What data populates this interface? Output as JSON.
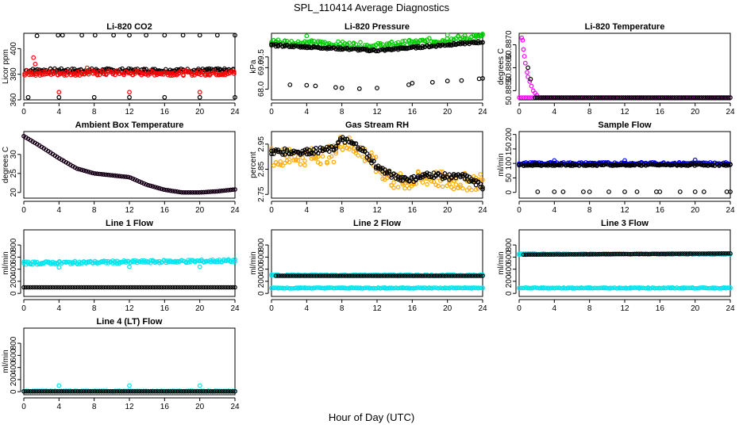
{
  "figure": {
    "title": "SPL_110414  Average Diagnostics",
    "xlabel": "Hour of Day (UTC)"
  },
  "chart_data": [
    {
      "type": "scatter",
      "title": "Li-820 CO2",
      "ylabel": "Licor ppm",
      "xlim": [
        0,
        24
      ],
      "ylim": [
        360,
        412
      ],
      "xticks": [
        0,
        4,
        8,
        12,
        16,
        20,
        24
      ],
      "yticks": [
        360,
        380,
        400
      ],
      "series": [
        {
          "color": "#000000",
          "band": {
            "x": [
              0.3,
              23.8
            ],
            "center": 383,
            "spread": 1.5
          },
          "points": [
            [
              1.5,
              410
            ],
            [
              3.9,
              410.5
            ],
            [
              4.4,
              410.5
            ],
            [
              6.6,
              410.5
            ],
            [
              8.1,
              410.5
            ],
            [
              10.2,
              410.5
            ],
            [
              12.0,
              410.5
            ],
            [
              13.9,
              410.5
            ],
            [
              16.0,
              410.5
            ],
            [
              18.1,
              410.5
            ],
            [
              20.0,
              410.5
            ],
            [
              22.0,
              410.5
            ],
            [
              24.0,
              410.5
            ],
            [
              0.5,
              362
            ],
            [
              4.0,
              362
            ],
            [
              8.0,
              362
            ],
            [
              12.0,
              362
            ],
            [
              16.0,
              362
            ],
            [
              20.0,
              362
            ],
            [
              24.0,
              362
            ]
          ]
        },
        {
          "color": "#ff0000",
          "band": {
            "x": [
              0.1,
              23.9
            ],
            "center": 381,
            "spread": 2
          },
          "points": [
            [
              1.1,
              393
            ],
            [
              1.3,
              388
            ],
            [
              4.0,
              366
            ],
            [
              7.2,
              385
            ],
            [
              12.0,
              366
            ],
            [
              20.0,
              366
            ]
          ]
        }
      ]
    },
    {
      "type": "scatter",
      "title": "Li-820 Pressure",
      "ylabel": "kPa",
      "xlim": [
        0,
        24
      ],
      "ylim": [
        67.5,
        70.6
      ],
      "xticks": [
        0,
        4,
        8,
        12,
        16,
        20,
        24
      ],
      "yticks": [
        68.0,
        69.0,
        69.5
      ],
      "ytick_labels": [
        "68.0",
        "69.0",
        "69.5"
      ],
      "series": [
        {
          "color": "#00cc00",
          "band": {
            "x": [
              0.0,
              24.0
            ],
            "trend": [
              [
                0,
                70.2
              ],
              [
                12,
                70.0
              ],
              [
                24,
                70.45
              ]
            ],
            "spread": 0.15
          },
          "points": [
            [
              4.0,
              70.48
            ],
            [
              20.0,
              70.52
            ]
          ]
        },
        {
          "color": "#000000",
          "band": {
            "x": [
              0.0,
              24.0
            ],
            "trend": [
              [
                0,
                70.05
              ],
              [
                12,
                69.8
              ],
              [
                24,
                70.2
              ]
            ],
            "spread": 0.05
          },
          "points": [
            [
              2.1,
              68.2
            ],
            [
              4.0,
              68.18
            ],
            [
              5.0,
              68.15
            ],
            [
              7.3,
              68.08
            ],
            [
              8.0,
              68.05
            ],
            [
              10.0,
              68.02
            ],
            [
              12.0,
              68.05
            ],
            [
              15.6,
              68.2
            ],
            [
              16.0,
              68.28
            ],
            [
              18.3,
              68.32
            ],
            [
              20.0,
              68.38
            ],
            [
              21.6,
              68.4
            ],
            [
              23.6,
              68.48
            ],
            [
              24.0,
              68.5
            ]
          ]
        }
      ]
    },
    {
      "type": "scatter",
      "title": "Li-820 Temperature",
      "ylabel": "degrees C",
      "xlim": [
        0,
        24
      ],
      "ylim": [
        50.8846,
        50.8875
      ],
      "xticks": [
        0,
        4,
        8,
        12,
        16,
        20,
        24
      ],
      "yticks": [
        50.885,
        50.886,
        50.887
      ],
      "ytick_labels": [
        "50.8850",
        "50.8860",
        "50.8870"
      ],
      "series": [
        {
          "color": "#ff00ff",
          "band": {
            "x": [
              0.0,
              24.0
            ],
            "center": 50.8847,
            "spread": 0
          },
          "points": [
            [
              0.3,
              50.8873
            ],
            [
              0.4,
              50.8872
            ],
            [
              0.5,
              50.8868
            ],
            [
              0.6,
              50.8865
            ],
            [
              0.7,
              50.8862
            ],
            [
              0.9,
              50.8858
            ],
            [
              1.0,
              50.8856
            ],
            [
              1.2,
              50.8854
            ],
            [
              1.4,
              50.8852
            ],
            [
              1.6,
              50.885
            ],
            [
              1.8,
              50.8849
            ],
            [
              2.0,
              50.8848
            ]
          ]
        },
        {
          "color": "#000000",
          "band": {
            "x": [
              1.8,
              24.0
            ],
            "center": 50.8847,
            "spread": 0
          },
          "points": [
            [
              1.0,
              50.886
            ],
            [
              1.3,
              50.8855
            ]
          ]
        }
      ]
    },
    {
      "type": "scatter",
      "title": "Ambient Box Temperature",
      "ylabel": "degrees C",
      "xlim": [
        0,
        24
      ],
      "ylim": [
        18.5,
        36
      ],
      "xticks": [
        0,
        4,
        8,
        12,
        16,
        20,
        24
      ],
      "yticks": [
        20,
        25,
        30
      ],
      "series": [
        {
          "color": "#ff00ff",
          "band": {
            "x": [
              0.0,
              24.0
            ],
            "trend": [
              [
                0,
                34.8
              ],
              [
                2,
                32.0
              ],
              [
                4,
                29.0
              ],
              [
                6,
                26.3
              ],
              [
                8,
                25.0
              ],
              [
                10,
                24.5
              ],
              [
                12,
                24.0
              ],
              [
                14,
                22.0
              ],
              [
                16,
                20.7
              ],
              [
                18,
                20.0
              ],
              [
                20,
                20.0
              ],
              [
                22,
                20.3
              ],
              [
                24,
                20.8
              ]
            ],
            "spread": 0
          },
          "points": []
        },
        {
          "color": "#000000",
          "band": {
            "x": [
              0.0,
              24.0
            ],
            "trend": [
              [
                0,
                34.8
              ],
              [
                2,
                32.0
              ],
              [
                4,
                29.0
              ],
              [
                6,
                26.3
              ],
              [
                8,
                25.0
              ],
              [
                10,
                24.5
              ],
              [
                12,
                24.0
              ],
              [
                14,
                22.0
              ],
              [
                16,
                20.7
              ],
              [
                18,
                20.0
              ],
              [
                20,
                20.0
              ],
              [
                22,
                20.3
              ],
              [
                24,
                20.8
              ]
            ],
            "spread": 0
          },
          "points": []
        }
      ]
    },
    {
      "type": "scatter",
      "title": "Gas Stream RH",
      "ylabel": "percent",
      "xlim": [
        0,
        24
      ],
      "ylim": [
        2.735,
        3.0
      ],
      "xticks": [
        0,
        4,
        8,
        12,
        16,
        20,
        24
      ],
      "yticks": [
        2.75,
        2.85,
        2.95
      ],
      "ytick_labels": [
        "2.75",
        "2.85",
        "2.95"
      ],
      "series": [
        {
          "color": "#ffaa00",
          "band": {
            "x": [
              0.0,
              24.0
            ],
            "trend": [
              [
                0,
                2.9
              ],
              [
                4,
                2.9
              ],
              [
                7,
                2.91
              ],
              [
                8,
                2.96
              ],
              [
                10,
                2.93
              ],
              [
                12,
                2.86
              ],
              [
                14,
                2.8
              ],
              [
                16,
                2.8
              ],
              [
                18,
                2.82
              ],
              [
                20,
                2.8
              ],
              [
                22,
                2.8
              ],
              [
                24,
                2.8
              ]
            ],
            "spread": 0.035
          },
          "points": []
        },
        {
          "color": "#000000",
          "band": {
            "x": [
              0.0,
              24.0
            ],
            "trend": [
              [
                0,
                2.92
              ],
              [
                4,
                2.92
              ],
              [
                7,
                2.93
              ],
              [
                8,
                2.97
              ],
              [
                10,
                2.94
              ],
              [
                12,
                2.86
              ],
              [
                14,
                2.82
              ],
              [
                16,
                2.81
              ],
              [
                18,
                2.83
              ],
              [
                20,
                2.82
              ],
              [
                22,
                2.82
              ],
              [
                24,
                2.78
              ]
            ],
            "spread": 0.012
          },
          "points": []
        }
      ]
    },
    {
      "type": "scatter",
      "title": "Sample Flow",
      "ylabel": "ml/min",
      "xlim": [
        0,
        24
      ],
      "ylim": [
        -20,
        210
      ],
      "xticks": [
        0,
        4,
        8,
        12,
        16,
        20,
        24
      ],
      "yticks": [
        0,
        50,
        100,
        150,
        200
      ],
      "series": [
        {
          "color": "#0000ff",
          "band": {
            "x": [
              0.0,
              24.0
            ],
            "center": 100,
            "spread": 4
          },
          "points": [
            [
              4.0,
              110
            ],
            [
              12.0,
              110
            ],
            [
              20.0,
              112
            ]
          ]
        },
        {
          "color": "#000000",
          "band": {
            "x": [
              0.0,
              24.0
            ],
            "center": 95,
            "spread": 3
          },
          "points": [
            [
              2.1,
              2
            ],
            [
              4.0,
              2
            ],
            [
              5.0,
              2
            ],
            [
              7.3,
              2
            ],
            [
              8.0,
              2
            ],
            [
              10.2,
              2
            ],
            [
              12.0,
              2
            ],
            [
              13.4,
              2
            ],
            [
              15.6,
              2
            ],
            [
              16.0,
              2
            ],
            [
              18.3,
              2
            ],
            [
              20.0,
              2
            ],
            [
              21.0,
              2
            ],
            [
              23.6,
              2
            ],
            [
              24.0,
              2
            ]
          ]
        }
      ]
    },
    {
      "type": "scatter",
      "title": "Line 1 Flow",
      "ylabel": "ml/min",
      "xlim": [
        0,
        24
      ],
      "ylim": [
        -50,
        1050
      ],
      "xticks": [
        0,
        4,
        8,
        12,
        16,
        20,
        24
      ],
      "yticks": [
        0,
        200,
        400,
        600,
        800
      ],
      "series": [
        {
          "color": "#00e5ee",
          "band": {
            "x": [
              0.0,
              24.0
            ],
            "trend": [
              [
                0,
                500
              ],
              [
                24,
                540
              ]
            ],
            "spread": 25
          },
          "points": [
            [
              4.0,
              430
            ],
            [
              12.0,
              440
            ],
            [
              20.0,
              440
            ]
          ]
        },
        {
          "color": "#000000",
          "band": {
            "x": [
              0.0,
              24.0
            ],
            "center": 100,
            "spread": 0
          },
          "points": []
        }
      ]
    },
    {
      "type": "scatter",
      "title": "Line 2 Flow",
      "ylabel": "ml/min",
      "xlim": [
        0,
        24
      ],
      "ylim": [
        -50,
        1050
      ],
      "xticks": [
        0,
        4,
        8,
        12,
        16,
        20,
        24
      ],
      "yticks": [
        0,
        200,
        400,
        600,
        800
      ],
      "series": [
        {
          "color": "#00e5ee",
          "band": {
            "x": [
              0.0,
              24.0
            ],
            "center": 300,
            "spread": 10
          },
          "points": []
        },
        {
          "color": "#00e5ee",
          "band": {
            "x": [
              0.0,
              24.0
            ],
            "center": 90,
            "spread": 8
          },
          "points": []
        },
        {
          "color": "#000000",
          "band": {
            "x": [
              0.5,
              24.0
            ],
            "center": 290,
            "spread": 0
          },
          "points": []
        }
      ]
    },
    {
      "type": "scatter",
      "title": "Line 3 Flow",
      "ylabel": "ml/min",
      "xlim": [
        0,
        24
      ],
      "ylim": [
        -50,
        1050
      ],
      "xticks": [
        0,
        4,
        8,
        12,
        16,
        20,
        24
      ],
      "yticks": [
        0,
        200,
        400,
        600,
        800
      ],
      "series": [
        {
          "color": "#00e5ee",
          "band": {
            "x": [
              0.0,
              24.0
            ],
            "center": 90,
            "spread": 8
          },
          "points": [
            [
              0.0,
              640
            ]
          ]
        },
        {
          "color": "#00e5ee",
          "band": {
            "x": [
              0.0,
              24.0
            ],
            "center": 650,
            "spread": 10
          },
          "points": []
        },
        {
          "color": "#000000",
          "band": {
            "x": [
              0.5,
              24.0
            ],
            "trend": [
              [
                0,
                640
              ],
              [
                24,
                660
              ]
            ],
            "spread": 0
          },
          "points": []
        }
      ]
    },
    {
      "type": "scatter",
      "title": "Line 4 (LT) Flow",
      "ylabel": "ml/min",
      "xlim": [
        0,
        24
      ],
      "ylim": [
        -50,
        1050
      ],
      "xticks": [
        0,
        4,
        8,
        12,
        16,
        20,
        24
      ],
      "yticks": [
        0,
        200,
        400,
        600,
        800
      ],
      "series": [
        {
          "color": "#00e5ee",
          "band": {
            "x": [
              0.0,
              24.0
            ],
            "center": 10,
            "spread": 6
          },
          "points": [
            [
              4.0,
              100
            ],
            [
              12.0,
              100
            ],
            [
              20.0,
              100
            ]
          ]
        },
        {
          "color": "#000000",
          "band": {
            "x": [
              0.0,
              24.0
            ],
            "center": 5,
            "spread": 0
          },
          "points": []
        }
      ]
    }
  ]
}
